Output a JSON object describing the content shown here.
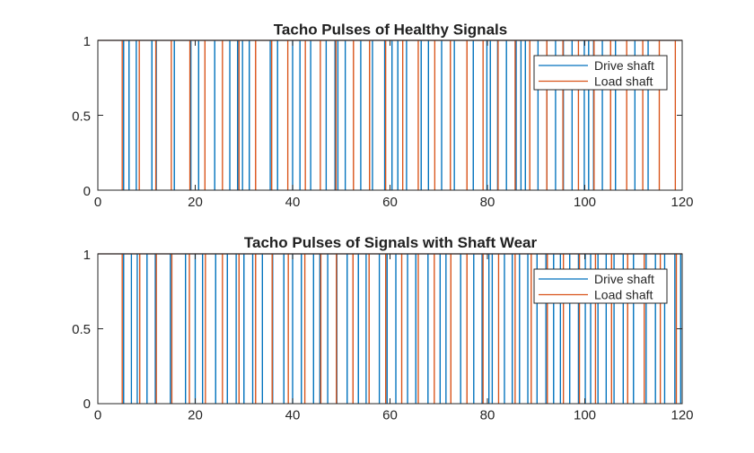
{
  "colors": {
    "drive": "#0072BD",
    "load": "#D95319",
    "axis": "#262626",
    "background": "#ffffff"
  },
  "chart_data": [
    {
      "type": "line",
      "title": "Tacho Pulses of Healthy Signals",
      "xlim": [
        0,
        120
      ],
      "ylim": [
        0,
        1
      ],
      "xticks": [
        "0",
        "20",
        "40",
        "60",
        "80",
        "100",
        "120"
      ],
      "yticks": [
        "0",
        "0.5",
        "1"
      ],
      "legend_position": "top-right",
      "series": [
        {
          "name": "Drive shaft",
          "color": "#0072BD",
          "pulse_times": [
            5.3,
            6.4,
            7.9,
            11.1,
            12.0,
            15.7,
            19.1,
            20.7,
            24.0,
            27.1,
            28.7,
            29.7,
            31.1,
            35.4,
            36.9,
            40.0,
            41.5,
            43.7,
            46.9,
            48.7,
            49.3,
            50.8,
            54.0,
            56.4,
            58.9,
            60.4,
            61.6,
            63.4,
            66.4,
            67.9,
            70.6,
            73.2,
            77.1,
            79.9,
            80.6,
            82.1,
            83.9,
            85.9,
            86.9,
            87.8,
            90.4,
            92.2,
            94.0,
            95.6,
            97.4,
            99.9,
            100.8,
            101.8,
            103.6,
            106.3,
            110.3,
            113.0
          ]
        },
        {
          "name": "Load shaft",
          "color": "#D95319",
          "pulse_times": [
            5.0,
            8.5,
            11.9,
            15.1,
            18.9,
            22.0,
            25.6,
            29.0,
            32.4,
            35.7,
            39.0,
            42.6,
            45.7,
            48.9,
            52.5,
            55.8,
            59.1,
            62.6,
            65.8,
            69.2,
            72.4,
            75.8,
            79.1,
            82.2,
            85.7,
            88.7,
            92.2,
            95.5,
            98.7,
            101.9,
            105.3,
            108.6,
            111.9,
            115.3,
            118.6
          ]
        }
      ]
    },
    {
      "type": "line",
      "title": "Tacho Pulses of Signals with Shaft Wear",
      "xlim": [
        0,
        120
      ],
      "ylim": [
        0,
        1
      ],
      "xticks": [
        "0",
        "20",
        "40",
        "60",
        "80",
        "100",
        "120"
      ],
      "yticks": [
        "0",
        "0.5",
        "1"
      ],
      "legend_position": "top-right",
      "series": [
        {
          "name": "Drive shaft",
          "color": "#0072BD",
          "pulse_times": [
            5.3,
            6.9,
            8.1,
            10.1,
            11.8,
            14.9,
            18.0,
            20.0,
            21.5,
            24.2,
            26.6,
            28.4,
            30.0,
            31.8,
            33.8,
            35.9,
            38.2,
            40.0,
            41.8,
            44.3,
            45.6,
            47.2,
            49.1,
            51.2,
            53.5,
            55.1,
            57.8,
            59.4,
            61.2,
            63.6,
            65.3,
            67.8,
            70.3,
            71.5,
            74.5,
            77.2,
            78.9,
            80.3,
            81.0,
            83.5,
            85.1,
            86.6,
            88.3,
            90.2,
            92.0,
            93.6,
            95.0,
            96.9,
            98.7,
            100.1,
            101.2,
            102.7,
            104.4,
            106.0,
            107.9,
            110.0,
            112.6,
            114.5,
            116.4,
            118.5,
            119.7
          ]
        },
        {
          "name": "Load shaft",
          "color": "#D95319",
          "pulse_times": [
            5.0,
            8.6,
            12.0,
            15.2,
            18.8,
            22.1,
            25.6,
            29.0,
            32.4,
            35.8,
            39.1,
            42.5,
            45.8,
            49.0,
            52.4,
            55.7,
            59.1,
            62.4,
            65.8,
            69.1,
            72.5,
            75.8,
            79.1,
            82.3,
            85.7,
            89.0,
            92.3,
            95.6,
            98.9,
            102.2,
            105.5,
            108.8,
            112.2,
            115.5,
            118.8
          ]
        }
      ]
    }
  ]
}
